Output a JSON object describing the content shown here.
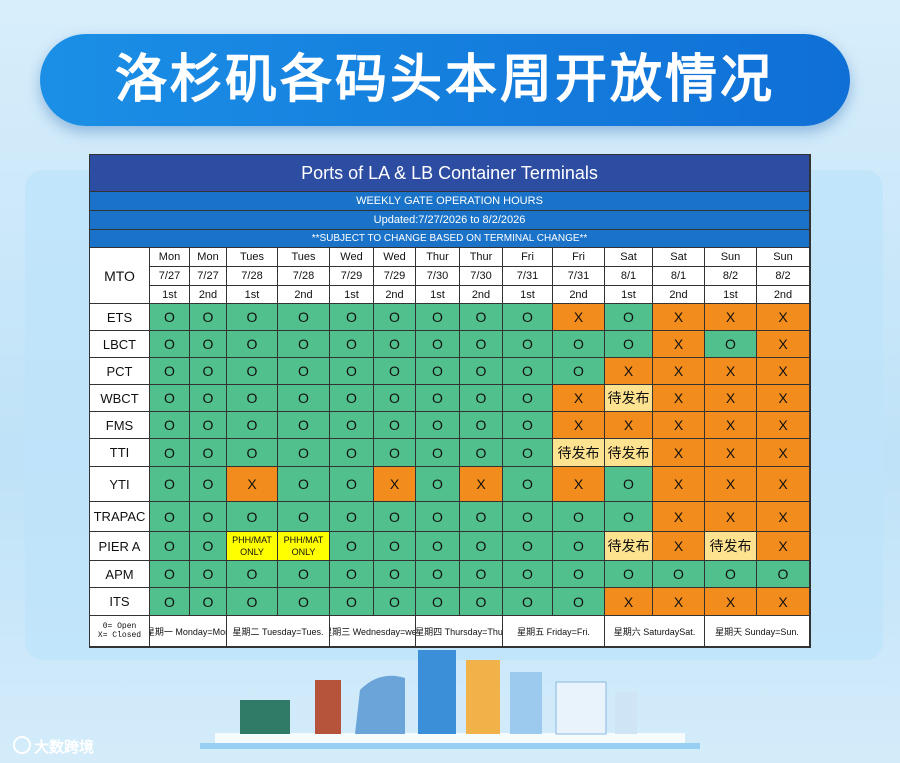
{
  "header": {
    "title": "洛杉矶各码头本周开放情况"
  },
  "table": {
    "title": "Ports of LA & LB Container Terminals",
    "subtitle": "WEEKLY GATE OPERATION HOURS",
    "updated": "Updated:7/27/2026 to 8/2/2026",
    "note": "**SUBJECT TO CHANGE BASED ON TERMINAL CHANGE**",
    "corner": "MTO",
    "days": [
      "Mon",
      "Mon",
      "Tues",
      "Tues",
      "Wed",
      "Wed",
      "Thur",
      "Thur",
      "Fri",
      "Fri",
      "Sat",
      "Sat",
      "Sun",
      "Sun"
    ],
    "dates": [
      "7/27",
      "7/27",
      "7/28",
      "7/28",
      "7/29",
      "7/29",
      "7/30",
      "7/30",
      "7/31",
      "7/31",
      "8/1",
      "8/1",
      "8/2",
      "8/2"
    ],
    "shifts": [
      "1st",
      "2nd",
      "1st",
      "2nd",
      "1st",
      "2nd",
      "1st",
      "2nd",
      "1st",
      "2nd",
      "1st",
      "2nd",
      "1st",
      "2nd"
    ],
    "cell_colors": {
      "O": "#52c08c",
      "X": "#f28c1c",
      "待发布": "#fde28f",
      "PHH/MAT ONLY": "#ffff00"
    },
    "rows": [
      {
        "terminal": "ETS",
        "cells": [
          "O",
          "O",
          "O",
          "O",
          "O",
          "O",
          "O",
          "O",
          "O",
          "X",
          "O",
          "X",
          "X",
          "X"
        ]
      },
      {
        "terminal": "LBCT",
        "cells": [
          "O",
          "O",
          "O",
          "O",
          "O",
          "O",
          "O",
          "O",
          "O",
          "O",
          "O",
          "X",
          "O",
          "X"
        ]
      },
      {
        "terminal": "PCT",
        "cells": [
          "O",
          "O",
          "O",
          "O",
          "O",
          "O",
          "O",
          "O",
          "O",
          "O",
          "X",
          "X",
          "X",
          "X"
        ]
      },
      {
        "terminal": "WBCT",
        "cells": [
          "O",
          "O",
          "O",
          "O",
          "O",
          "O",
          "O",
          "O",
          "O",
          "X",
          "待发布",
          "X",
          "X",
          "X"
        ]
      },
      {
        "terminal": "FMS",
        "cells": [
          "O",
          "O",
          "O",
          "O",
          "O",
          "O",
          "O",
          "O",
          "O",
          "X",
          "X",
          "X",
          "X",
          "X"
        ]
      },
      {
        "terminal": "TTI",
        "cells": [
          "O",
          "O",
          "O",
          "O",
          "O",
          "O",
          "O",
          "O",
          "O",
          "待发布",
          "待发布",
          "X",
          "X",
          "X"
        ]
      },
      {
        "terminal": "YTI",
        "cells": [
          "O",
          "O",
          "X",
          "O",
          "O",
          "X",
          "O",
          "X",
          "O",
          "X",
          "O",
          "X",
          "X",
          "X"
        ]
      },
      {
        "terminal": "TRAPAC",
        "cells": [
          "O",
          "O",
          "O",
          "O",
          "O",
          "O",
          "O",
          "O",
          "O",
          "O",
          "O",
          "X",
          "X",
          "X"
        ]
      },
      {
        "terminal": "PIER A",
        "cells": [
          "O",
          "O",
          "PHH/MAT ONLY",
          "PHH/MAT ONLY",
          "O",
          "O",
          "O",
          "O",
          "O",
          "O",
          "待发布",
          "X",
          "待发布",
          "X"
        ]
      },
      {
        "terminal": "APM",
        "cells": [
          "O",
          "O",
          "O",
          "O",
          "O",
          "O",
          "O",
          "O",
          "O",
          "O",
          "O",
          "O",
          "O",
          "O"
        ]
      },
      {
        "terminal": "ITS",
        "cells": [
          "O",
          "O",
          "O",
          "O",
          "O",
          "O",
          "O",
          "O",
          "O",
          "O",
          "X",
          "X",
          "X",
          "X"
        ]
      }
    ],
    "legend": [
      "0= Open",
      "X= Closed"
    ],
    "footer": [
      "星期一 Monday=Mon",
      "星期二 Tuesday=Tues.",
      "星期三 Wednesday=wed",
      "星期四 Thursday=Thu",
      "星期五 Friday=Fri.",
      "星期六 SaturdaySat.",
      "星期天 Sunday=Sun."
    ]
  },
  "brand": "大数跨境"
}
